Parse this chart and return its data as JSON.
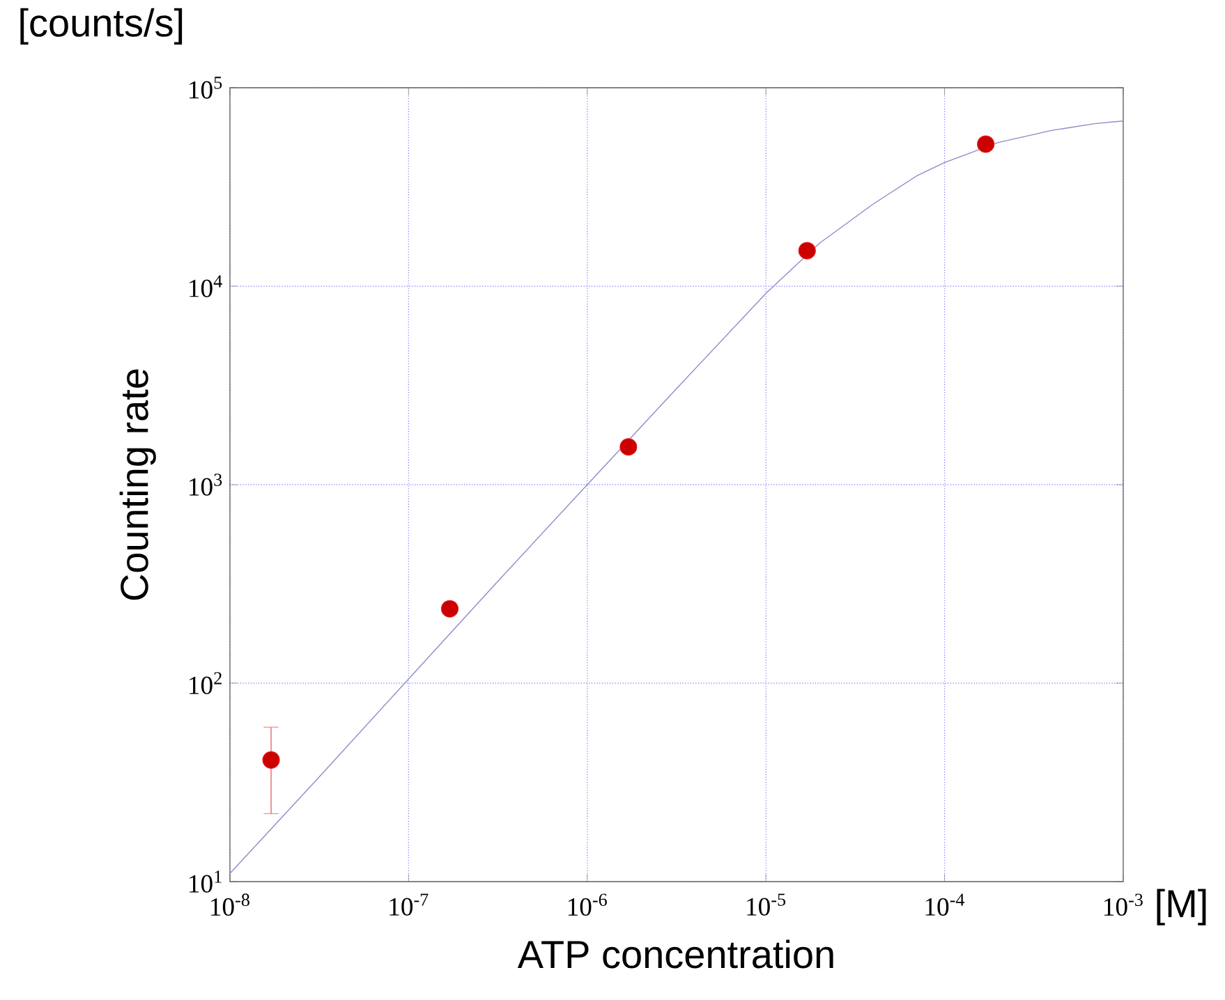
{
  "chart_data": {
    "type": "scatter",
    "xlabel": "ATP concentration",
    "ylabel": "Counting rate",
    "annotations": [
      "[counts/s]",
      "[M]"
    ],
    "log": "xy",
    "grid": true,
    "xlim": [
      1e-08,
      0.001
    ],
    "ylim": [
      10,
      100000
    ],
    "xticks": [
      {
        "value": 1e-08,
        "label": "10$^{-8}$"
      },
      {
        "value": 1e-07,
        "label": "10$^{-7}$"
      },
      {
        "value": 1e-06,
        "label": "10$^{-6}$"
      },
      {
        "value": 1e-05,
        "label": "10$^{-5}$"
      },
      {
        "value": 0.0001,
        "label": "10$^{-4}$"
      },
      {
        "value": 0.001,
        "label": "10$^{-3}$"
      }
    ],
    "yticks": [
      {
        "value": 10,
        "label": "10$^{1}$"
      },
      {
        "value": 100,
        "label": "10$^{2}$"
      },
      {
        "value": 1000,
        "label": "10$^{3}$"
      },
      {
        "value": 10000,
        "label": "10$^{4}$"
      },
      {
        "value": 100000,
        "label": "10$^{5}$"
      }
    ],
    "series": [
      {
        "type": "line",
        "color": "#8a8ac8",
        "marker": "none",
        "line_style": "solid",
        "x": [
          1e-08,
          3e-08,
          1e-07,
          3e-07,
          1e-06,
          3e-06,
          1e-05,
          2e-05,
          4e-05,
          7e-05,
          0.0001,
          0.0002,
          0.0004,
          0.0007,
          0.001
        ],
        "values": [
          11,
          32,
          105,
          310,
          1000,
          2900,
          9200,
          16500,
          26000,
          36000,
          42000,
          53000,
          61000,
          66000,
          68000
        ]
      },
      {
        "type": "scatter",
        "color": "#e31e24",
        "marker": "circle",
        "x": [
          1.7e-08,
          1.7e-07,
          1.7e-06,
          1.7e-05,
          0.00017
        ],
        "values": [
          41,
          237,
          1550,
          15100,
          52000
        ],
        "errors": [
          [
            22,
            60
          ],
          null,
          null,
          null,
          null
        ]
      }
    ]
  }
}
